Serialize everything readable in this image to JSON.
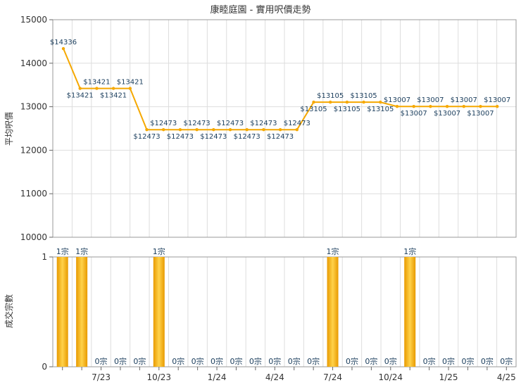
{
  "chart_data": [
    {
      "type": "line",
      "title": "康睦庭園 - 實用呎價走勢",
      "ylabel": "平均呎價",
      "ylim": [
        10000,
        15000
      ],
      "yticks": [
        10000,
        11000,
        12000,
        13000,
        14000,
        15000
      ],
      "grid": true,
      "line_color": "#f5a800",
      "values": [
        14336,
        13421,
        13421,
        13421,
        13421,
        12473,
        12473,
        12473,
        12473,
        12473,
        12473,
        12473,
        12473,
        12473,
        12473,
        13105,
        13105,
        13105,
        13105,
        13105,
        13007,
        13007,
        13007,
        13007,
        13007,
        13007,
        13007
      ],
      "data_labels": [
        "$14336",
        "$13421",
        "$13421",
        "$13421",
        "$13421",
        "$12473",
        "$12473",
        "$12473",
        "$12473",
        "$12473",
        "$12473",
        "$12473",
        "$12473",
        "$12473",
        "$12473",
        "$13105",
        "$13105",
        "$13105",
        "$13105",
        "$13105",
        "$13007",
        "$13007",
        "$13007",
        "$13007",
        "$13007",
        "$13007",
        "$13007"
      ]
    },
    {
      "type": "bar",
      "ylabel": "成交宗數",
      "ylim": [
        0,
        1
      ],
      "yticks": [
        0,
        1
      ],
      "bar_color": "#f5a800",
      "categories": [
        "",
        "",
        "7/23",
        "",
        "",
        "10/23",
        "",
        "",
        "1/24",
        "",
        "",
        "4/24",
        "",
        "",
        "7/24",
        "",
        "",
        "10/24",
        "",
        "",
        "1/25",
        "",
        "",
        "4/25"
      ],
      "values": [
        1,
        1,
        0,
        0,
        0,
        1,
        0,
        0,
        0,
        0,
        0,
        0,
        0,
        0,
        1,
        0,
        0,
        0,
        1,
        0,
        0,
        0,
        0,
        0
      ],
      "data_labels": [
        "1宗",
        "1宗",
        "0宗",
        "0宗",
        "0宗",
        "1宗",
        "0宗",
        "0宗",
        "0宗",
        "0宗",
        "0宗",
        "0宗",
        "0宗",
        "0宗",
        "1宗",
        "0宗",
        "0宗",
        "0宗",
        "1宗",
        "0宗",
        "0宗",
        "0宗",
        "0宗",
        "0宗"
      ]
    }
  ]
}
